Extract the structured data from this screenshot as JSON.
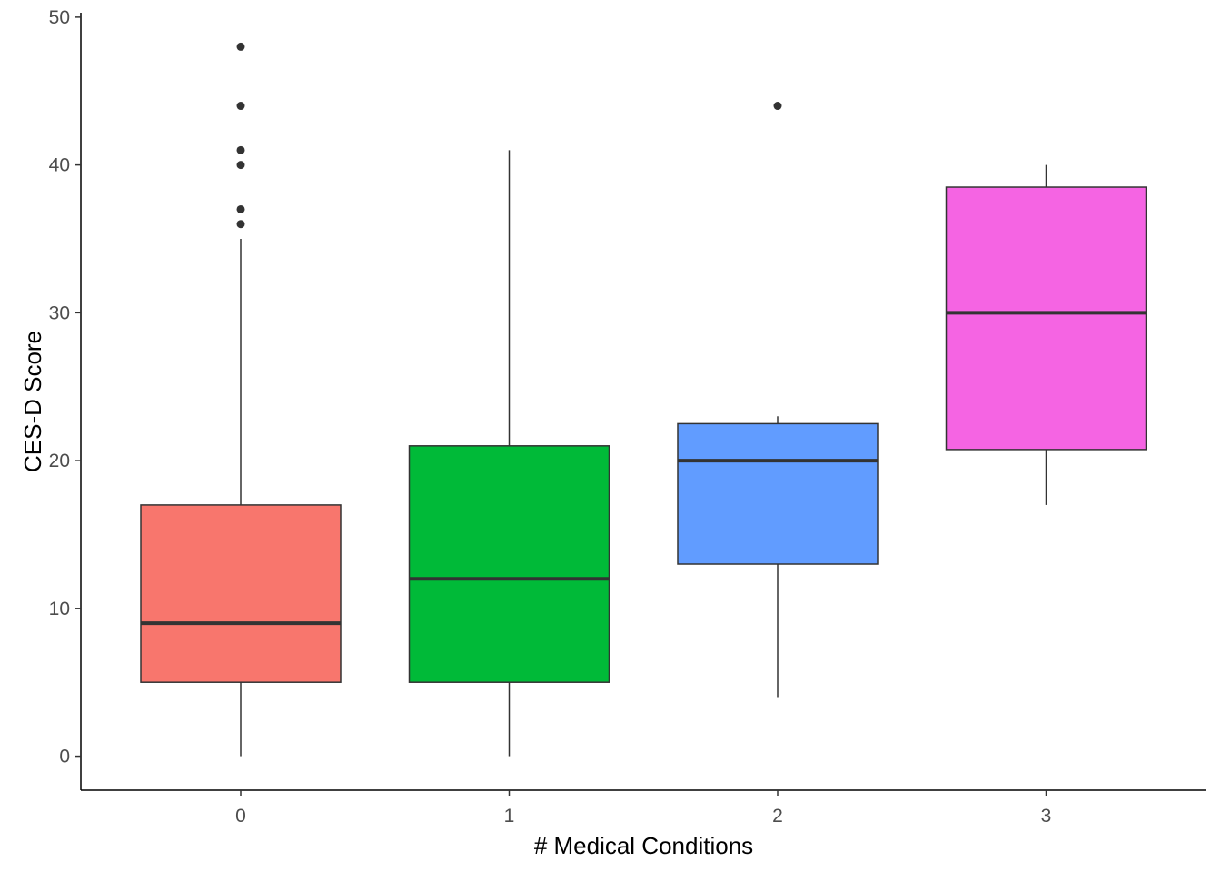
{
  "chart_data": {
    "type": "box",
    "title": "",
    "xlabel": "# Medical Conditions",
    "ylabel": "CES-D Score",
    "ylim": [
      -2.3,
      50.3
    ],
    "y_ticks": [
      0,
      10,
      20,
      30,
      40,
      50
    ],
    "grid": false,
    "legend": "none",
    "categories": [
      "0",
      "1",
      "2",
      "3"
    ],
    "boxes": [
      {
        "category": "0",
        "color": "#F8766D",
        "whisker_low": 0,
        "q1": 5,
        "median": 9,
        "q3": 17,
        "whisker_high": 35,
        "outliers": [
          36,
          37,
          40,
          41,
          44,
          48
        ]
      },
      {
        "category": "1",
        "color": "#00BA38",
        "whisker_low": 0,
        "q1": 5,
        "median": 12,
        "q3": 21,
        "whisker_high": 41,
        "outliers": []
      },
      {
        "category": "2",
        "color": "#619CFF",
        "whisker_low": 4,
        "q1": 13,
        "median": 20,
        "q3": 22.5,
        "whisker_high": 23,
        "outliers": [
          44
        ]
      },
      {
        "category": "3",
        "color": "#F564E3",
        "whisker_low": 17,
        "q1": 20.75,
        "median": 30,
        "q3": 38.5,
        "whisker_high": 40,
        "outliers": []
      }
    ]
  }
}
